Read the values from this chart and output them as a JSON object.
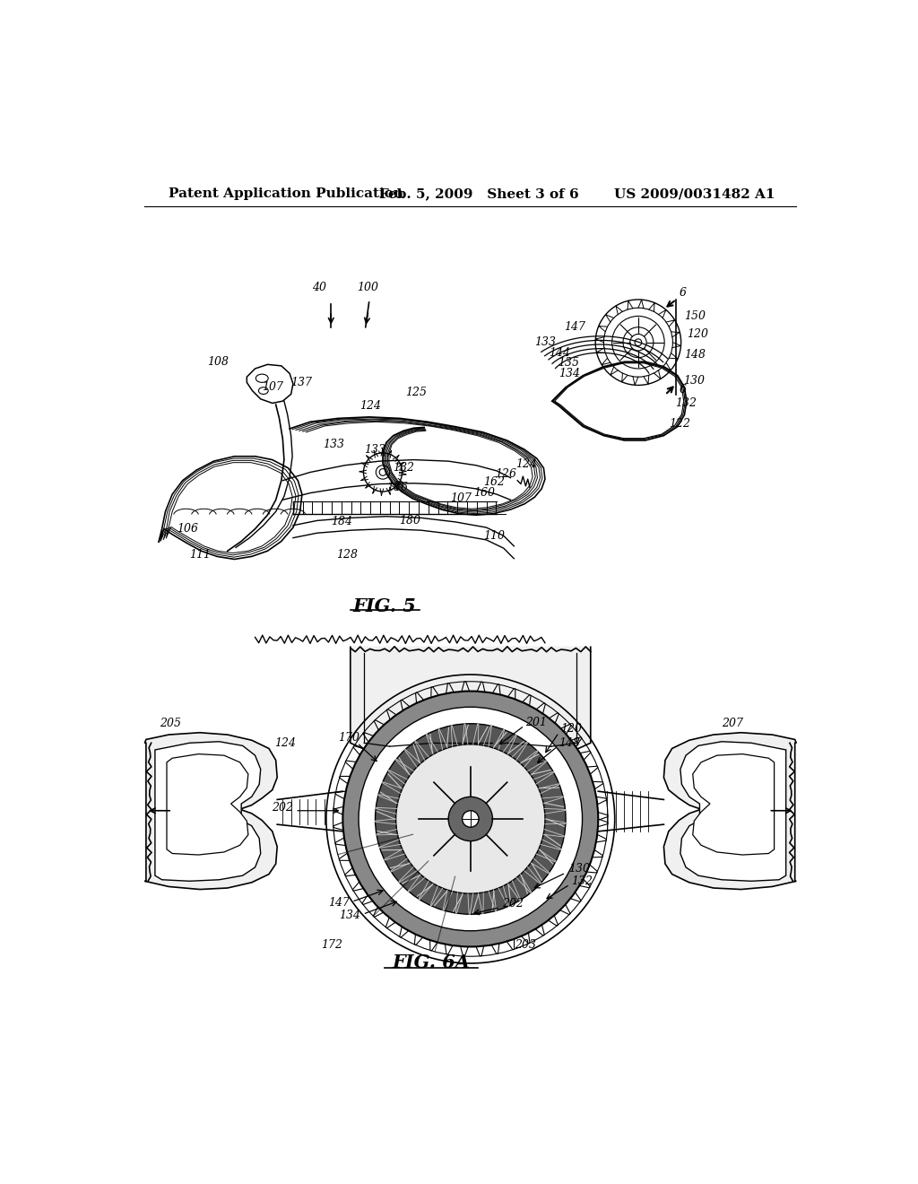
{
  "background_color": "#ffffff",
  "header_left": "Patent Application Publication",
  "header_center": "Feb. 5, 2009   Sheet 3 of 6",
  "header_right": "US 2009/0031482 A1",
  "header_fontsize": 11,
  "annotation_fontsize": 9,
  "fig_label_fontsize": 14
}
